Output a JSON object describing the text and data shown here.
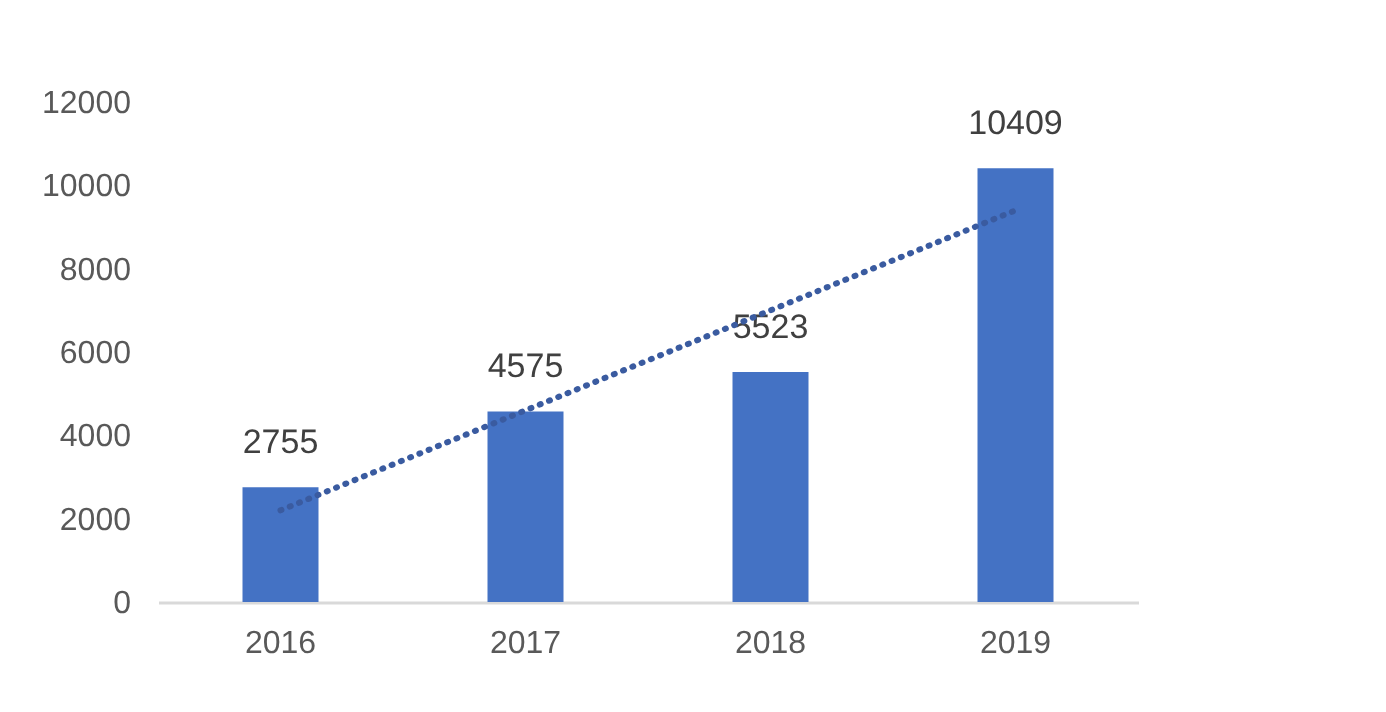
{
  "chart_data": {
    "type": "bar",
    "categories": [
      "2016",
      "2017",
      "2018",
      "2019"
    ],
    "series": [
      {
        "color": "#4472c4",
        "values": [
          2755,
          4575,
          5523,
          10409
        ],
        "data_labels": true
      },
      {
        "type": "line",
        "color": "#3a5ba0",
        "values": [
          2200,
          4600,
          7000,
          9400
        ],
        "line_style": "dotted",
        "marker": "none"
      }
    ],
    "ylim": [
      0,
      12000
    ],
    "yticks": [
      0,
      2000,
      4000,
      6000,
      8000,
      10000,
      12000
    ],
    "grid": false,
    "legend": false
  }
}
